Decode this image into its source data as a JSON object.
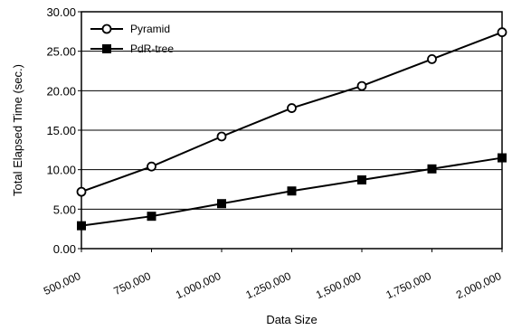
{
  "chart_data": {
    "type": "line",
    "title": "",
    "xlabel": "Data Size",
    "ylabel": "Total Elapsed Time (sec.)",
    "categories": [
      "500,000",
      "750,000",
      "1,000,000",
      "1,250,000",
      "1,500,000",
      "1,750,000",
      "2,000,000"
    ],
    "x": [
      500000,
      750000,
      1000000,
      1250000,
      1500000,
      1750000,
      2000000
    ],
    "ylim": [
      0,
      30
    ],
    "yticks": [
      "0.00",
      "5.00",
      "10.00",
      "15.00",
      "20.00",
      "25.00",
      "30.00"
    ],
    "grid": "horizontal",
    "legend_position": "top-left",
    "series": [
      {
        "name": "Pyramid",
        "marker": "open-circle",
        "color": "#000000",
        "values": [
          7.2,
          10.4,
          14.2,
          17.8,
          20.6,
          24.0,
          27.4
        ]
      },
      {
        "name": "PdR-tree",
        "marker": "filled-square",
        "color": "#000000",
        "values": [
          2.9,
          4.1,
          5.7,
          7.3,
          8.7,
          10.1,
          11.5
        ]
      }
    ]
  }
}
